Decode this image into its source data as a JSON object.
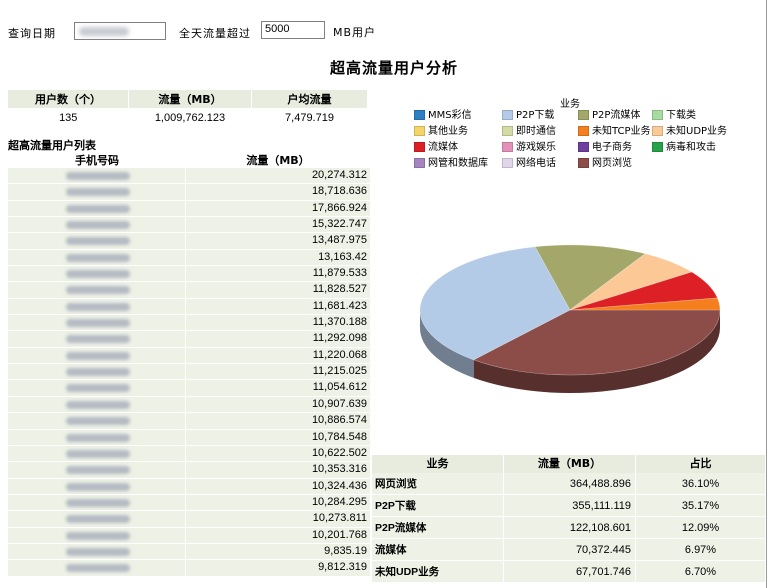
{
  "query": {
    "date_label": "查询日期",
    "threshold_label": "全天流量超过",
    "threshold_value": "5000",
    "unit_label": "MB用户"
  },
  "title": "超高流量用户分析",
  "summary": {
    "headers": [
      "用户数（个）",
      "流量（MB）",
      "户均流量"
    ],
    "values": [
      "135",
      "1,009,762.123",
      "7,479.719"
    ]
  },
  "user_list": {
    "caption": "超高流量用户列表",
    "headers": [
      "手机号码",
      "流量（MB）"
    ],
    "rows": [
      "20,274.312",
      "18,718.636",
      "17,866.924",
      "15,322.747",
      "13,487.975",
      "13,163.42",
      "11,879.533",
      "11,828.527",
      "11,681.423",
      "11,370.188",
      "11,292.098",
      "11,220.068",
      "11,215.025",
      "11,054.612",
      "10,907.639",
      "10,886.574",
      "10,784.548",
      "10,622.502",
      "10,353.316",
      "10,324.436",
      "10,284.295",
      "10,273.811",
      "10,201.768",
      "9,835.19",
      "9,812.319"
    ]
  },
  "legend": {
    "title": "业务",
    "items": [
      {
        "label": "MMS彩信",
        "color": "#2d7fc1"
      },
      {
        "label": "P2P下载",
        "color": "#b4cbe8"
      },
      {
        "label": "P2P流媒体",
        "color": "#a3a86a"
      },
      {
        "label": "下载类",
        "color": "#a7dba1"
      },
      {
        "label": "其他业务",
        "color": "#f3d56a"
      },
      {
        "label": "即时通信",
        "color": "#d5dba5"
      },
      {
        "label": "未知TCP业务",
        "color": "#f57f1f"
      },
      {
        "label": "未知UDP业务",
        "color": "#fbc896"
      },
      {
        "label": "流媒体",
        "color": "#dd2025"
      },
      {
        "label": "游戏娱乐",
        "color": "#e391b9"
      },
      {
        "label": "电子商务",
        "color": "#6e3fa0"
      },
      {
        "label": "病毒和攻击",
        "color": "#26a24a"
      },
      {
        "label": "网管和数据库",
        "color": "#a684bf"
      },
      {
        "label": "网络电话",
        "color": "#e1d6ea"
      },
      {
        "label": "网页浏览",
        "color": "#8c4c48"
      }
    ]
  },
  "chart_data": {
    "type": "pie",
    "title": "",
    "slices": [
      {
        "label": "网页浏览",
        "value": 36.1,
        "color": "#8c4c48"
      },
      {
        "label": "P2P下载",
        "value": 35.17,
        "color": "#b4cbe8"
      },
      {
        "label": "P2P流媒体",
        "value": 12.09,
        "color": "#a3a86a"
      },
      {
        "label": "未知UDP业务",
        "value": 6.7,
        "color": "#fbc896"
      },
      {
        "label": "流媒体",
        "value": 6.97,
        "color": "#dd2025"
      },
      {
        "label": "其他",
        "value": 2.97,
        "color": "#f57f1f"
      }
    ]
  },
  "business_table": {
    "headers": [
      "业务",
      "流量（MB）",
      "占比"
    ],
    "rows": [
      {
        "name": "网页浏览",
        "traffic": "364,488.896",
        "share": "36.10%"
      },
      {
        "name": "P2P下载",
        "traffic": "355,111.119",
        "share": "35.17%"
      },
      {
        "name": "P2P流媒体",
        "traffic": "122,108.601",
        "share": "12.09%"
      },
      {
        "name": "流媒体",
        "traffic": "70,372.445",
        "share": "6.97%"
      },
      {
        "name": "未知UDP业务",
        "traffic": "67,701.746",
        "share": "6.70%"
      }
    ]
  }
}
